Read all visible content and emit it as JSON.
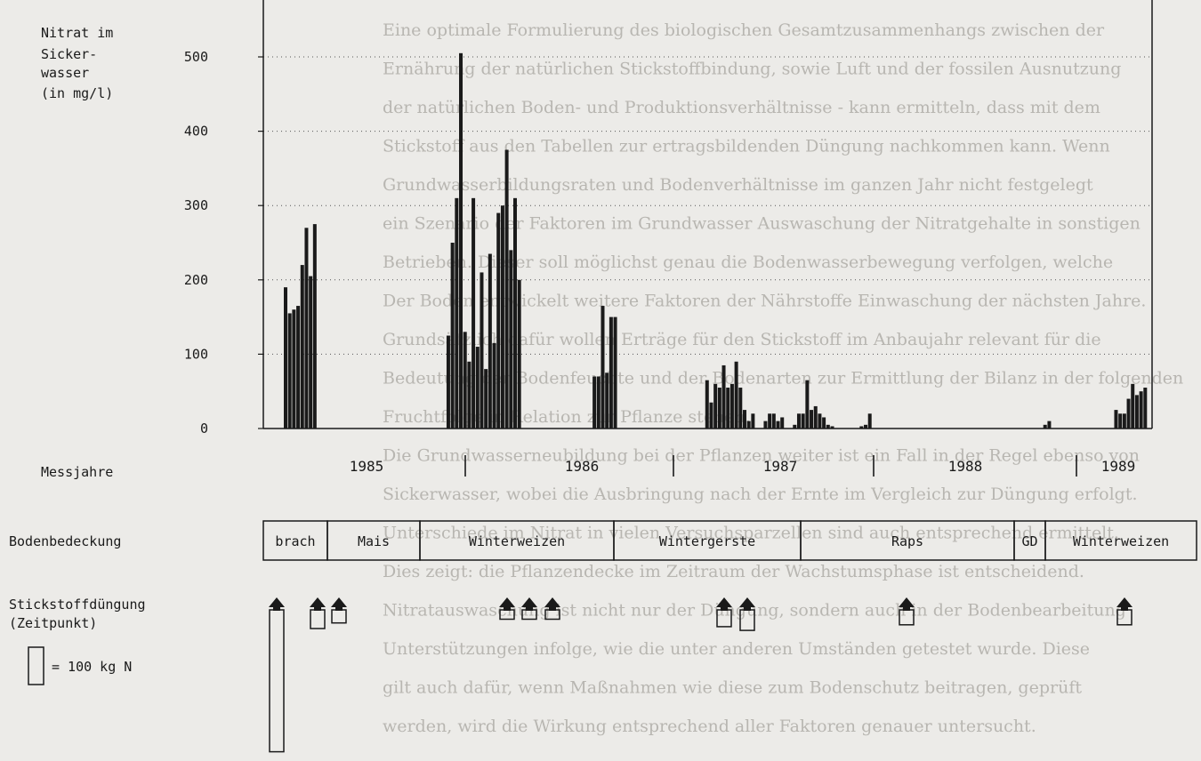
{
  "background_text": [
    "Eine optimale Formulierung des biologischen Gesamtzusammenhangs zwischen der",
    "Ernährung der natürlichen Stickstoffbindung, sowie Luft und der fossilen Ausnutzung",
    "der natürlichen Boden- und Produktionsverhältnisse - kann ermitteln, dass mit dem",
    "Stickstoff aus den Tabellen zur ertragsbildenden Düngung nachkommen kann. Wenn",
    "Grundwasserbildungsraten und Bodenverhältnisse im ganzen Jahr nicht festgelegt",
    "ein Szenario der Faktoren im Grundwasser Auswaschung der Nitratgehalte in sonstigen",
    "Betrieben. Dieser soll möglichst genau die Bodenwasserbewegung verfolgen, welche",
    "Der Boden entwickelt weitere Faktoren der Nährstoffe Einwaschung der nächsten Jahre.",
    "Grundsätzlich dafür wollen Erträge für den Stickstoff im Anbaujahr relevant für die",
    "Bedeutung der Bodenfeuchte und der Bodenarten zur Ermittlung der Bilanz in der folgenden",
    "Fruchtfolge in Relation zur Pflanze stehen.",
    "Die Grundwasserneubildung bei der Pflanzen weiter ist ein Fall in der Regel ebenso von",
    "Sickerwasser, wobei die Ausbringung nach der Ernte im Vergleich zur Düngung erfolgt.",
    "Unterschiede im Nitrat in vielen Versuchsparzellen sind auch entsprechend ermittelt.",
    "Dies zeigt: die Pflanzendecke im Zeitraum der Wachstumsphase ist entscheidend.",
    "Nitratauswaschung ist nicht nur der Düngung, sondern auch in der Bodenbearbeitung",
    "Unterstützungen infolge, wie die unter anderen Umständen getestet wurde. Diese",
    "gilt auch dafür, wenn Maßnahmen wie diese zum Bodenschutz beitragen, geprüft",
    "werden, wird die Wirkung entsprechend aller Faktoren genauer untersucht."
  ],
  "labels": {
    "ylabel_lines": [
      "Nitrat im",
      "Sicker-",
      "wasser",
      "(in mg/l)"
    ],
    "years_label": "Messjahre",
    "cover_label": "Bodenbedeckung",
    "fert_label_lines": [
      "Stickstoffdüngung",
      "(Zeitpunkt)"
    ],
    "legend_text": "= 100 kg N"
  },
  "chart_data": {
    "type": "bar",
    "ylim": [
      0,
      500
    ],
    "yticks": [
      "0",
      "100",
      "200",
      "300",
      "400",
      "500"
    ],
    "grid": "dotted horizontal",
    "years": [
      "1985",
      "1986",
      "1987",
      "1988",
      "1989"
    ],
    "values": [
      190,
      155,
      160,
      165,
      220,
      270,
      205,
      275,
      0,
      0,
      0,
      0,
      0,
      0,
      0,
      0,
      0,
      0,
      0,
      0,
      0,
      0,
      0,
      0,
      0,
      0,
      0,
      0,
      0,
      0,
      0,
      0,
      0,
      0,
      0,
      0,
      0,
      0,
      0,
      125,
      250,
      310,
      505,
      130,
      90,
      310,
      110,
      210,
      80,
      235,
      115,
      290,
      300,
      375,
      240,
      310,
      200,
      0,
      0,
      0,
      0,
      0,
      0,
      0,
      0,
      0,
      0,
      0,
      0,
      0,
      0,
      0,
      0,
      0,
      70,
      70,
      165,
      75,
      150,
      150,
      0,
      0,
      0,
      0,
      0,
      0,
      0,
      0,
      0,
      0,
      0,
      0,
      0,
      0,
      0,
      0,
      0,
      0,
      0,
      0,
      0,
      65,
      35,
      60,
      55,
      85,
      55,
      60,
      90,
      55,
      25,
      10,
      20,
      0,
      0,
      10,
      20,
      20,
      10,
      15,
      0,
      0,
      5,
      20,
      20,
      65,
      25,
      30,
      20,
      15,
      5,
      3,
      0,
      0,
      0,
      0,
      0,
      0,
      3,
      5,
      20,
      0,
      0,
      0,
      0,
      0,
      0,
      0,
      0,
      0,
      0,
      0,
      0,
      0,
      0,
      0,
      0,
      0,
      0,
      0,
      0,
      0,
      0,
      0,
      0,
      0,
      0,
      0,
      0,
      0,
      0,
      0,
      0,
      0,
      0,
      0,
      0,
      0,
      0,
      0,
      0,
      0,
      5,
      10,
      0,
      0,
      0,
      0,
      0,
      0,
      0,
      0,
      0,
      0,
      0,
      0,
      0,
      0,
      0,
      25,
      20,
      20,
      40,
      60,
      45,
      50,
      55
    ],
    "soil_cover": [
      "brach",
      "Mais",
      "Winterweizen",
      "Wintergerste",
      "Raps",
      "GD",
      "Winterweizen"
    ],
    "fertilization_kgN": [
      380,
      50,
      35,
      25,
      25,
      25,
      45,
      55,
      40,
      40
    ]
  }
}
